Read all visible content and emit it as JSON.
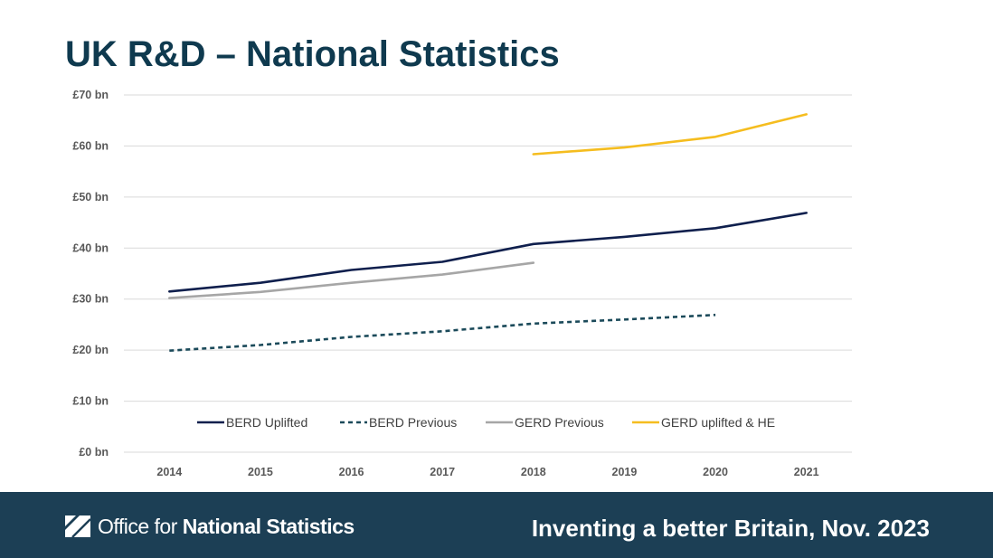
{
  "slide": {
    "title": "UK R&D – National Statistics"
  },
  "chart_data": {
    "type": "line",
    "title": "",
    "xlabel": "",
    "ylabel": "",
    "x": [
      "2014",
      "2015",
      "2016",
      "2017",
      "2018",
      "2019",
      "2020",
      "2021"
    ],
    "y_ticks": [
      "£0 bn",
      "£10 bn",
      "£20 bn",
      "£30 bn",
      "£40 bn",
      "£50 bn",
      "£60 bn",
      "£70 bn"
    ],
    "ylim": [
      0,
      70
    ],
    "grid": true,
    "legend_position": "bottom",
    "series": [
      {
        "name": "BERD Uplifted",
        "color": "#0f1f4d",
        "dash": "solid",
        "values": [
          31.5,
          33.2,
          35.7,
          37.3,
          40.8,
          42.2,
          43.9,
          46.9
        ]
      },
      {
        "name": "BERD Previous",
        "color": "#1b4a5a",
        "dash": "dashed",
        "values": [
          19.9,
          21.0,
          22.6,
          23.7,
          25.2,
          26.0,
          26.9,
          null
        ]
      },
      {
        "name": "GERD Previous",
        "color": "#a6a6a6",
        "dash": "solid",
        "values": [
          30.2,
          31.4,
          33.2,
          34.8,
          37.1,
          null,
          null,
          null
        ]
      },
      {
        "name": "GERD uplifted & HE",
        "color": "#f5bd1f",
        "dash": "solid",
        "values": [
          null,
          null,
          null,
          null,
          58.4,
          59.7,
          61.8,
          66.2
        ]
      }
    ]
  },
  "footer": {
    "logo_light": "Office for ",
    "logo_bold": "National Statistics",
    "tagline": "Inventing a better Britain, Nov. 2023",
    "background_color": "#1c3f55"
  }
}
